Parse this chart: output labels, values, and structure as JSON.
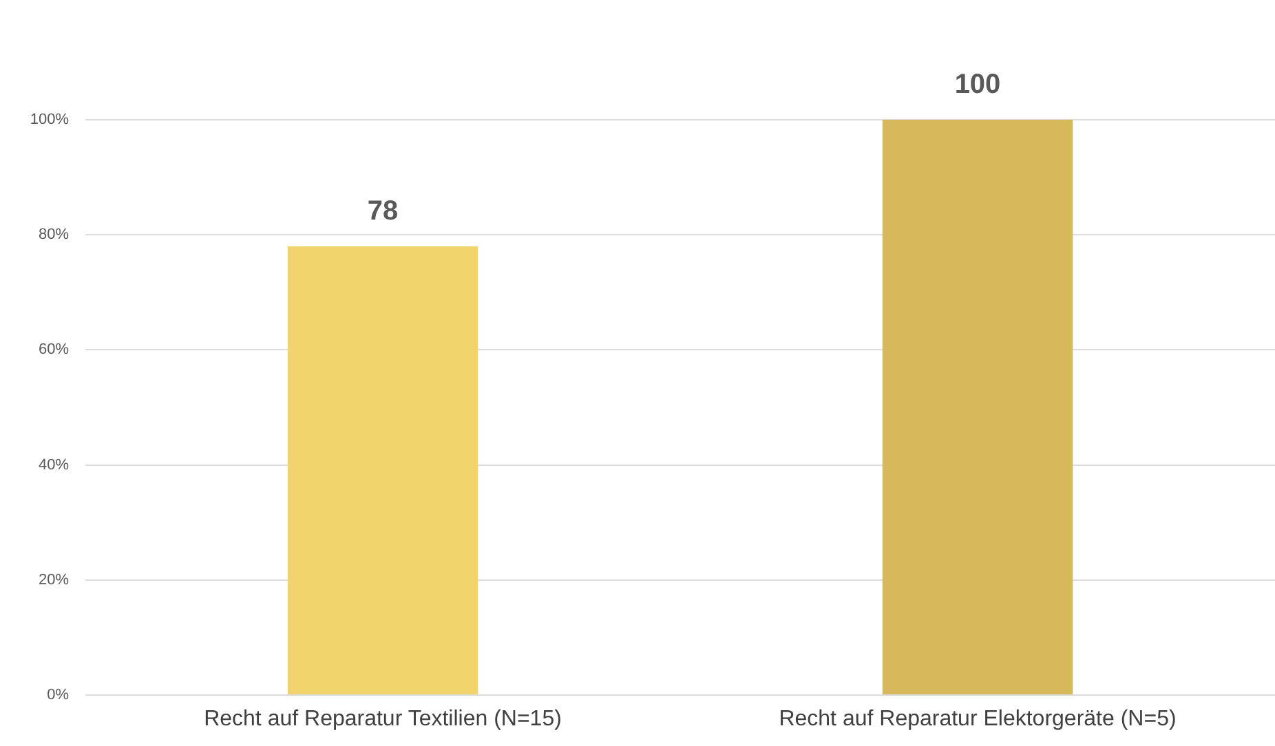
{
  "chart_data": {
    "type": "bar",
    "categories": [
      "Recht auf Reparatur Textilien (N=15)",
      "Recht auf Reparatur Elektorgeräte (N=5)"
    ],
    "values": [
      78,
      100
    ],
    "colors": [
      "#f2d46c",
      "#d5b95b"
    ],
    "ylim": [
      0,
      100
    ],
    "yticks": [
      {
        "value": 0,
        "label": "0%"
      },
      {
        "value": 20,
        "label": "20%"
      },
      {
        "value": 40,
        "label": "40%"
      },
      {
        "value": 60,
        "label": "60%"
      },
      {
        "value": 80,
        "label": "80%"
      },
      {
        "value": 100,
        "label": "100%"
      }
    ],
    "grid": "y",
    "data_labels": true
  }
}
